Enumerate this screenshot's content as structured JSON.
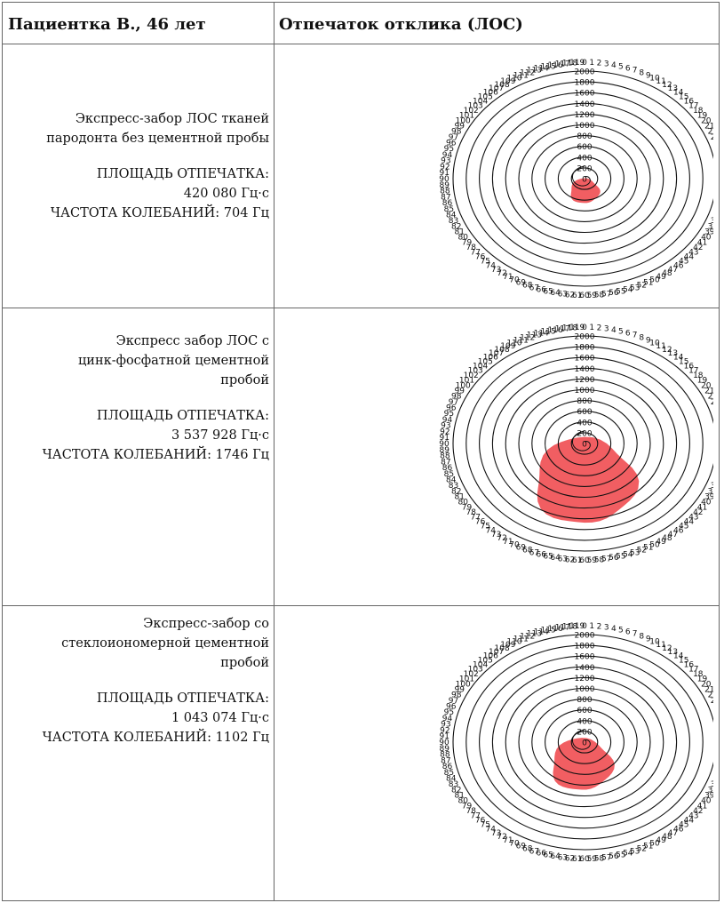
{
  "table": {
    "col1_header": "Пациентка В., 46 лет",
    "col2_header": "Отпечаток отклика (ЛОС)"
  },
  "rows": [
    {
      "desc_lines": [
        "Экспресс-забор ЛОС тканей",
        "пародонта без цементной пробы"
      ],
      "area_label": "ПЛОЩАДЬ ОТПЕЧАТКА:",
      "area_value": "420 080 Гц·с",
      "freq_text": "ЧАСТОТА КОЛЕБАНИЙ: 704 Гц"
    },
    {
      "desc_lines": [
        "Экспресс забор ЛОС с",
        "цинк-фосфатной цементной",
        "пробой"
      ],
      "area_label": "ПЛОЩАДЬ ОТПЕЧАТКА:",
      "area_value": "3 537 928 Гц·с",
      "freq_text": "ЧАСТОТА КОЛЕБАНИЙ: 1746 Гц"
    },
    {
      "desc_lines": [
        "Экспресс-забор со",
        "стеклоиономерной цементной",
        "пробой"
      ],
      "area_label": "ПЛОЩАДЬ ОТПЕЧАТКА:",
      "area_value": "1 043 074 Гц·с",
      "freq_text": "ЧАСТОТА КОЛЕБАНИЙ: 1102 Гц"
    }
  ],
  "chart_data": [
    {
      "type": "radar",
      "rmax": 2100,
      "ring_values": [
        200,
        400,
        600,
        800,
        1000,
        1200,
        1400,
        1600,
        1800,
        2000
      ],
      "ring_labels": [
        "0",
        "200",
        "400",
        "600",
        "800",
        "1000",
        "1200",
        "1400",
        "1600",
        "1800",
        "2000"
      ],
      "angle_count": 120,
      "fill_color": "#f0555a",
      "blob": {
        "center_angle": 60,
        "center_r": 230,
        "radius": 220
      }
    },
    {
      "type": "radar",
      "rmax": 2100,
      "ring_values": [
        200,
        400,
        600,
        800,
        1000,
        1200,
        1400,
        1600,
        1800,
        2000
      ],
      "ring_labels": [
        "0",
        "200",
        "400",
        "600",
        "800",
        "1000",
        "1200",
        "1400",
        "1600",
        "1800",
        "2000"
      ],
      "angle_count": 120,
      "fill_color": "#f0555a",
      "blob": {
        "center_angle": 60,
        "center_r": 700,
        "radius": 760
      }
    },
    {
      "type": "radar",
      "rmax": 2100,
      "ring_values": [
        200,
        400,
        600,
        800,
        1000,
        1200,
        1400,
        1600,
        1800,
        2000
      ],
      "ring_labels": [
        "0",
        "200",
        "400",
        "600",
        "800",
        "1000",
        "1200",
        "1400",
        "1600",
        "1800",
        "2000"
      ],
      "angle_count": 120,
      "fill_color": "#f0555a",
      "blob": {
        "center_angle": 62,
        "center_r": 420,
        "radius": 460
      }
    }
  ]
}
